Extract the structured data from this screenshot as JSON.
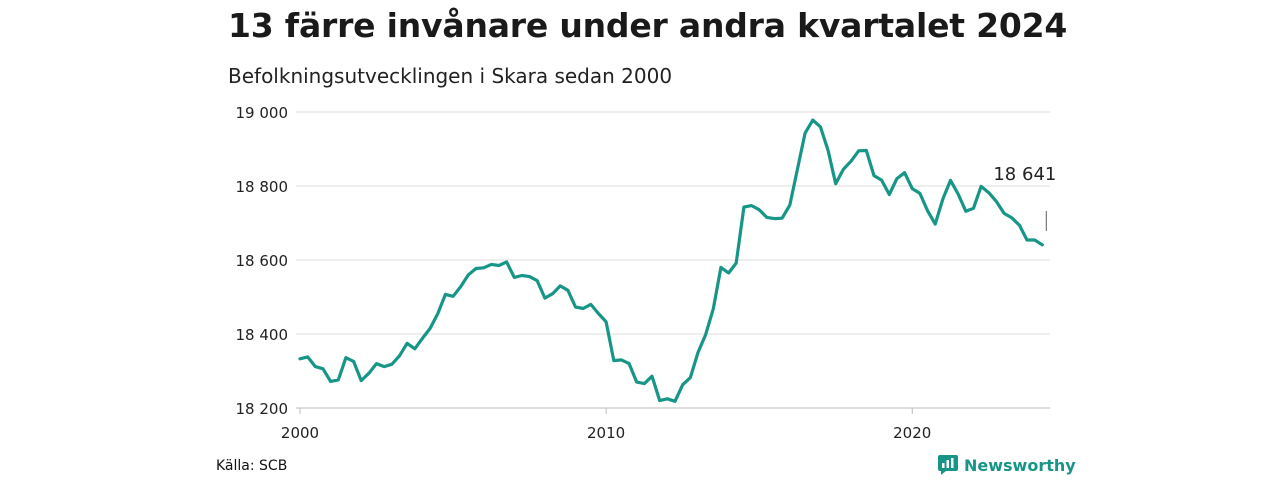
{
  "title": "13 färre invånare under andra kvartalet 2024",
  "subtitle": "Befolkningsutvecklingen i Skara sedan 2000",
  "source": "Källa: SCB",
  "brand": {
    "name": "Newsworthy",
    "icon": "newsworthy-logo-icon"
  },
  "colors": {
    "line": "#179688",
    "grid": "#dddddd",
    "axis": "#bbbbbb",
    "brand": "#179688"
  },
  "chart_data": {
    "type": "line",
    "title": "13 färre invånare under andra kvartalet 2024",
    "subtitle": "Befolkningsutvecklingen i Skara sedan 2000",
    "xlabel": "",
    "ylabel": "",
    "xlim": [
      2000,
      2024.5
    ],
    "ylim": [
      18200,
      19000
    ],
    "x_ticks": [
      2000,
      2010,
      2020
    ],
    "x_tick_labels": [
      "2000",
      "2010",
      "2020"
    ],
    "y_ticks": [
      18200,
      18400,
      18600,
      18800,
      19000
    ],
    "y_tick_labels": [
      "18 200",
      "18 400",
      "18 600",
      "18 800",
      "19 000"
    ],
    "grid": "horizontal",
    "annotation": {
      "label": "18 641",
      "x": 2024.25,
      "y": 18641
    },
    "series": [
      {
        "color": "#179688",
        "x": [
          2000.0,
          2000.25,
          2000.5,
          2000.75,
          2001.0,
          2001.25,
          2001.5,
          2001.75,
          2002.0,
          2002.25,
          2002.5,
          2002.75,
          2003.0,
          2003.25,
          2003.5,
          2003.75,
          2004.0,
          2004.25,
          2004.5,
          2004.75,
          2005.0,
          2005.25,
          2005.5,
          2005.75,
          2006.0,
          2006.25,
          2006.5,
          2006.75,
          2007.0,
          2007.25,
          2007.5,
          2007.75,
          2008.0,
          2008.25,
          2008.5,
          2008.75,
          2009.0,
          2009.25,
          2009.5,
          2009.75,
          2010.0,
          2010.25,
          2010.5,
          2010.75,
          2011.0,
          2011.25,
          2011.5,
          2011.75,
          2012.0,
          2012.25,
          2012.5,
          2012.75,
          2013.0,
          2013.25,
          2013.5,
          2013.75,
          2014.0,
          2014.25,
          2014.5,
          2014.75,
          2015.0,
          2015.25,
          2015.5,
          2015.75,
          2016.0,
          2016.25,
          2016.5,
          2016.75,
          2017.0,
          2017.25,
          2017.5,
          2017.75,
          2018.0,
          2018.25,
          2018.5,
          2018.75,
          2019.0,
          2019.25,
          2019.5,
          2019.75,
          2020.0,
          2020.25,
          2020.5,
          2020.75,
          2021.0,
          2021.25,
          2021.5,
          2021.75,
          2022.0,
          2022.25,
          2022.5,
          2022.75,
          2023.0,
          2023.25,
          2023.5,
          2023.75,
          2024.0,
          2024.25
        ],
        "values": [
          18333,
          18338,
          18312,
          18306,
          18272,
          18276,
          18336,
          18326,
          18274,
          18294,
          18320,
          18312,
          18318,
          18341,
          18375,
          18360,
          18388,
          18415,
          18455,
          18507,
          18502,
          18528,
          18560,
          18577,
          18579,
          18588,
          18585,
          18595,
          18553,
          18558,
          18555,
          18544,
          18497,
          18509,
          18530,
          18518,
          18473,
          18469,
          18480,
          18455,
          18433,
          18328,
          18330,
          18320,
          18270,
          18266,
          18286,
          18220,
          18225,
          18218,
          18263,
          18282,
          18350,
          18398,
          18468,
          18580,
          18565,
          18592,
          18743,
          18747,
          18736,
          18715,
          18712,
          18713,
          18748,
          18845,
          18943,
          18978,
          18960,
          18896,
          18806,
          18845,
          18867,
          18895,
          18896,
          18828,
          18816,
          18777,
          18820,
          18836,
          18793,
          18780,
          18733,
          18697,
          18765,
          18815,
          18778,
          18732,
          18740,
          18799,
          18782,
          18758,
          18726,
          18714,
          18694,
          18654,
          18654,
          18641
        ]
      }
    ]
  }
}
